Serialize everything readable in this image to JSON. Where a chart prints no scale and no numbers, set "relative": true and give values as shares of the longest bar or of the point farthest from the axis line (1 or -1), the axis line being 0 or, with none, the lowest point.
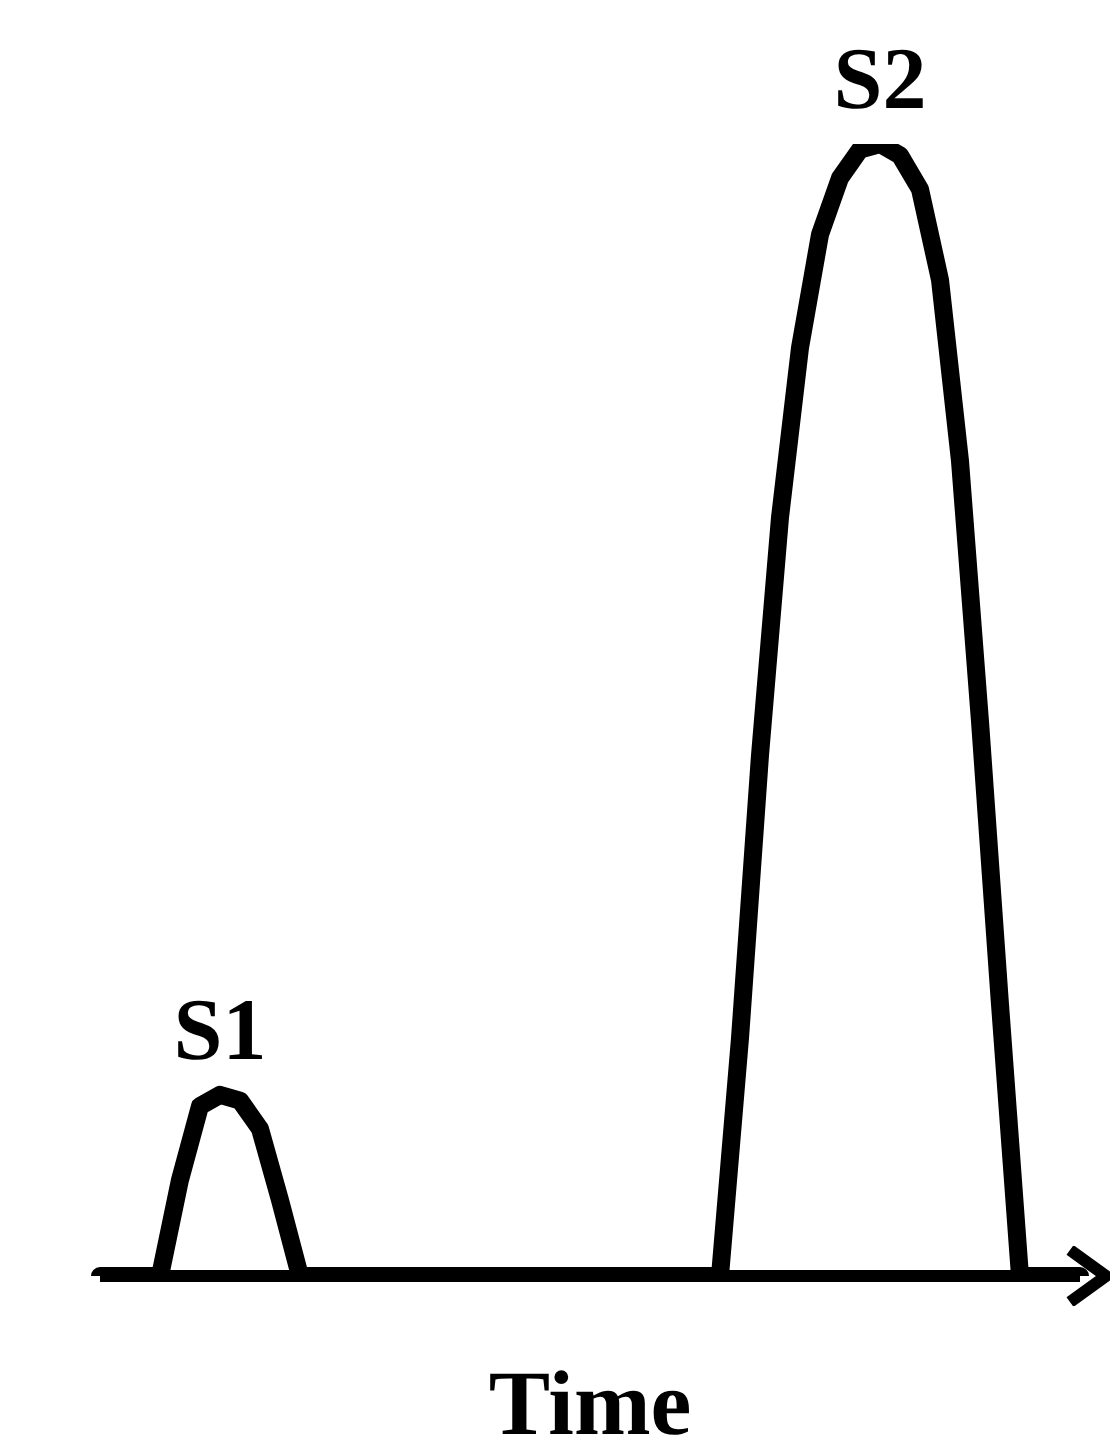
{
  "chart_data": {
    "type": "line",
    "relative": true,
    "xlabel": "Time",
    "categories": [
      null,
      null,
      null,
      null,
      null,
      null,
      null,
      null,
      null,
      null,
      null,
      null,
      null,
      null,
      null,
      null,
      null,
      null,
      null,
      null,
      null,
      null,
      null,
      null,
      null,
      null,
      null,
      null,
      null,
      null,
      null,
      null,
      null,
      null,
      null,
      null,
      null,
      null,
      null,
      null,
      null,
      null,
      null,
      null,
      null,
      null,
      null,
      null,
      null,
      null
    ],
    "series": [
      {
        "color": "#000000",
        "values": [
          0,
          0,
          0,
          0,
          0.085,
          0.15,
          0.16,
          0.155,
          0.13,
          0.067,
          0,
          0,
          0,
          0,
          0,
          0,
          0,
          0,
          0,
          0,
          0,
          0,
          0,
          0,
          0,
          0,
          0,
          0,
          0,
          0,
          0,
          0,
          0.21,
          0.46,
          0.67,
          0.82,
          0.92,
          0.97,
          0.995,
          1,
          0.99,
          0.96,
          0.88,
          0.72,
          0.49,
          0.24,
          0,
          0,
          0,
          0
        ]
      }
    ],
    "annotations": [
      {
        "text": "S1",
        "y": 0.16
      },
      {
        "text": "S2",
        "y": 1
      }
    ]
  }
}
